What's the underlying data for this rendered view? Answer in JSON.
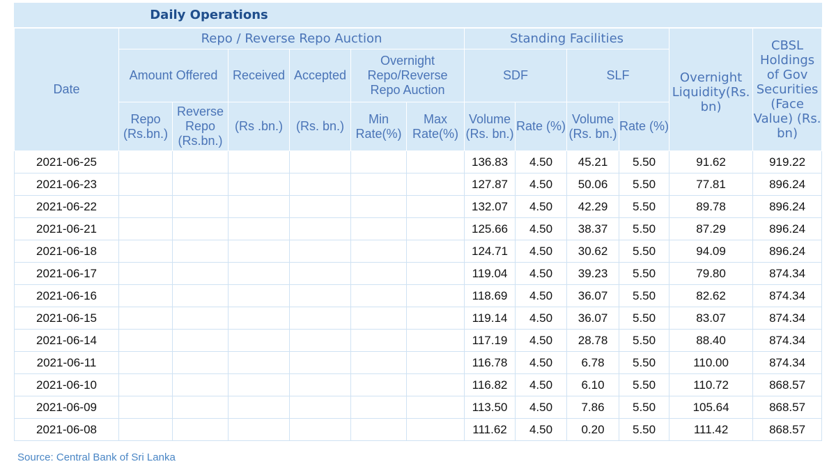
{
  "title": "Daily Operations",
  "headers": {
    "date": "Date",
    "repo_group": "Repo / Reverse Repo Auction",
    "standing_group": "Standing Facilities",
    "overnight_liquidity": "Overnight Liquidity(Rs. bn)",
    "cbsl_holdings": "CBSL Holdings of Gov Securities (Face Value) (Rs. bn)",
    "amount_offered": "Amount Offered",
    "received": "Received",
    "accepted": "Accepted",
    "overnight_auction": "Overnight Repo/Reverse Repo Auction",
    "sdf": "SDF",
    "slf": "SLF",
    "repo": "Repo (Rs.bn.)",
    "reverse_repo": "Reverse Repo (Rs.bn.)",
    "received_unit": "(Rs .bn.)",
    "accepted_unit": "(Rs. bn.)",
    "min_rate": "Min Rate(%)",
    "max_rate": "Max Rate(%)",
    "sdf_volume": "Volume (Rs. bn.)",
    "sdf_rate": "Rate (%)",
    "slf_volume": "Volume (Rs. bn.)",
    "slf_rate": "Rate (%)"
  },
  "rows": [
    {
      "date": "2021-06-25",
      "sdf_vol": "136.83",
      "sdf_rate": "4.50",
      "slf_vol": "45.21",
      "slf_rate": "5.50",
      "liquidity": "91.62",
      "holdings": "919.22"
    },
    {
      "date": "2021-06-23",
      "sdf_vol": "127.87",
      "sdf_rate": "4.50",
      "slf_vol": "50.06",
      "slf_rate": "5.50",
      "liquidity": "77.81",
      "holdings": "896.24"
    },
    {
      "date": "2021-06-22",
      "sdf_vol": "132.07",
      "sdf_rate": "4.50",
      "slf_vol": "42.29",
      "slf_rate": "5.50",
      "liquidity": "89.78",
      "holdings": "896.24"
    },
    {
      "date": "2021-06-21",
      "sdf_vol": "125.66",
      "sdf_rate": "4.50",
      "slf_vol": "38.37",
      "slf_rate": "5.50",
      "liquidity": "87.29",
      "holdings": "896.24"
    },
    {
      "date": "2021-06-18",
      "sdf_vol": "124.71",
      "sdf_rate": "4.50",
      "slf_vol": "30.62",
      "slf_rate": "5.50",
      "liquidity": "94.09",
      "holdings": "896.24"
    },
    {
      "date": "2021-06-17",
      "sdf_vol": "119.04",
      "sdf_rate": "4.50",
      "slf_vol": "39.23",
      "slf_rate": "5.50",
      "liquidity": "79.80",
      "holdings": "874.34"
    },
    {
      "date": "2021-06-16",
      "sdf_vol": "118.69",
      "sdf_rate": "4.50",
      "slf_vol": "36.07",
      "slf_rate": "5.50",
      "liquidity": "82.62",
      "holdings": "874.34"
    },
    {
      "date": "2021-06-15",
      "sdf_vol": "119.14",
      "sdf_rate": "4.50",
      "slf_vol": "36.07",
      "slf_rate": "5.50",
      "liquidity": "83.07",
      "holdings": "874.34"
    },
    {
      "date": "2021-06-14",
      "sdf_vol": "117.19",
      "sdf_rate": "4.50",
      "slf_vol": "28.78",
      "slf_rate": "5.50",
      "liquidity": "88.40",
      "holdings": "874.34"
    },
    {
      "date": "2021-06-11",
      "sdf_vol": "116.78",
      "sdf_rate": "4.50",
      "slf_vol": "6.78",
      "slf_rate": "5.50",
      "liquidity": "110.00",
      "holdings": "874.34"
    },
    {
      "date": "2021-06-10",
      "sdf_vol": "116.82",
      "sdf_rate": "4.50",
      "slf_vol": "6.10",
      "slf_rate": "5.50",
      "liquidity": "110.72",
      "holdings": "868.57"
    },
    {
      "date": "2021-06-09",
      "sdf_vol": "113.50",
      "sdf_rate": "4.50",
      "slf_vol": "7.86",
      "slf_rate": "5.50",
      "liquidity": "105.64",
      "holdings": "868.57"
    },
    {
      "date": "2021-06-08",
      "sdf_vol": "111.62",
      "sdf_rate": "4.50",
      "slf_vol": "0.20",
      "slf_rate": "5.50",
      "liquidity": "111.42",
      "holdings": "868.57"
    }
  ],
  "source": "Source: Central Bank of Sri Lanka"
}
